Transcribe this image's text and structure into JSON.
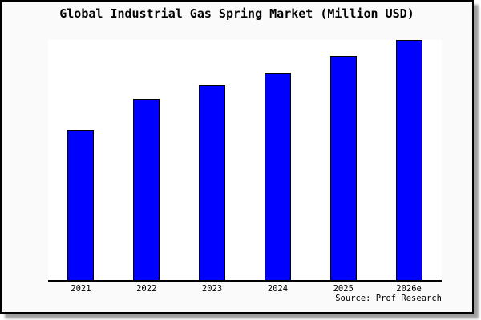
{
  "title": "Global Industrial Gas Spring Market (Million USD)",
  "footer": {
    "source": "Source: Prof Research"
  },
  "colors": {
    "bar_fill": "#0000ff",
    "bar_border": "#000000",
    "plot_background": "#ffffff",
    "canvas_background": "#fafafa",
    "frame_border": "#000000",
    "axis": "#000000",
    "text": "#000000",
    "shadow": "#9e9e9e"
  },
  "chart_data": {
    "type": "bar",
    "title": "Global Industrial Gas Spring Market (Million USD)",
    "categories": [
      "2021",
      "2022",
      "2023",
      "2024",
      "2025",
      "2026e"
    ],
    "values": [
      62.3,
      75.3,
      81.3,
      86.3,
      93.3,
      100
    ],
    "series_note": "No y-axis or value labels shown in the figure; values are bar heights measured relative to the tallest bar (2026e = 100).",
    "xlabel": "",
    "ylabel": "",
    "ylim": [
      0,
      100
    ],
    "grid": false,
    "legend": false,
    "bar_color": "#0000ff",
    "annotations": [
      "Source: Prof Research"
    ]
  }
}
